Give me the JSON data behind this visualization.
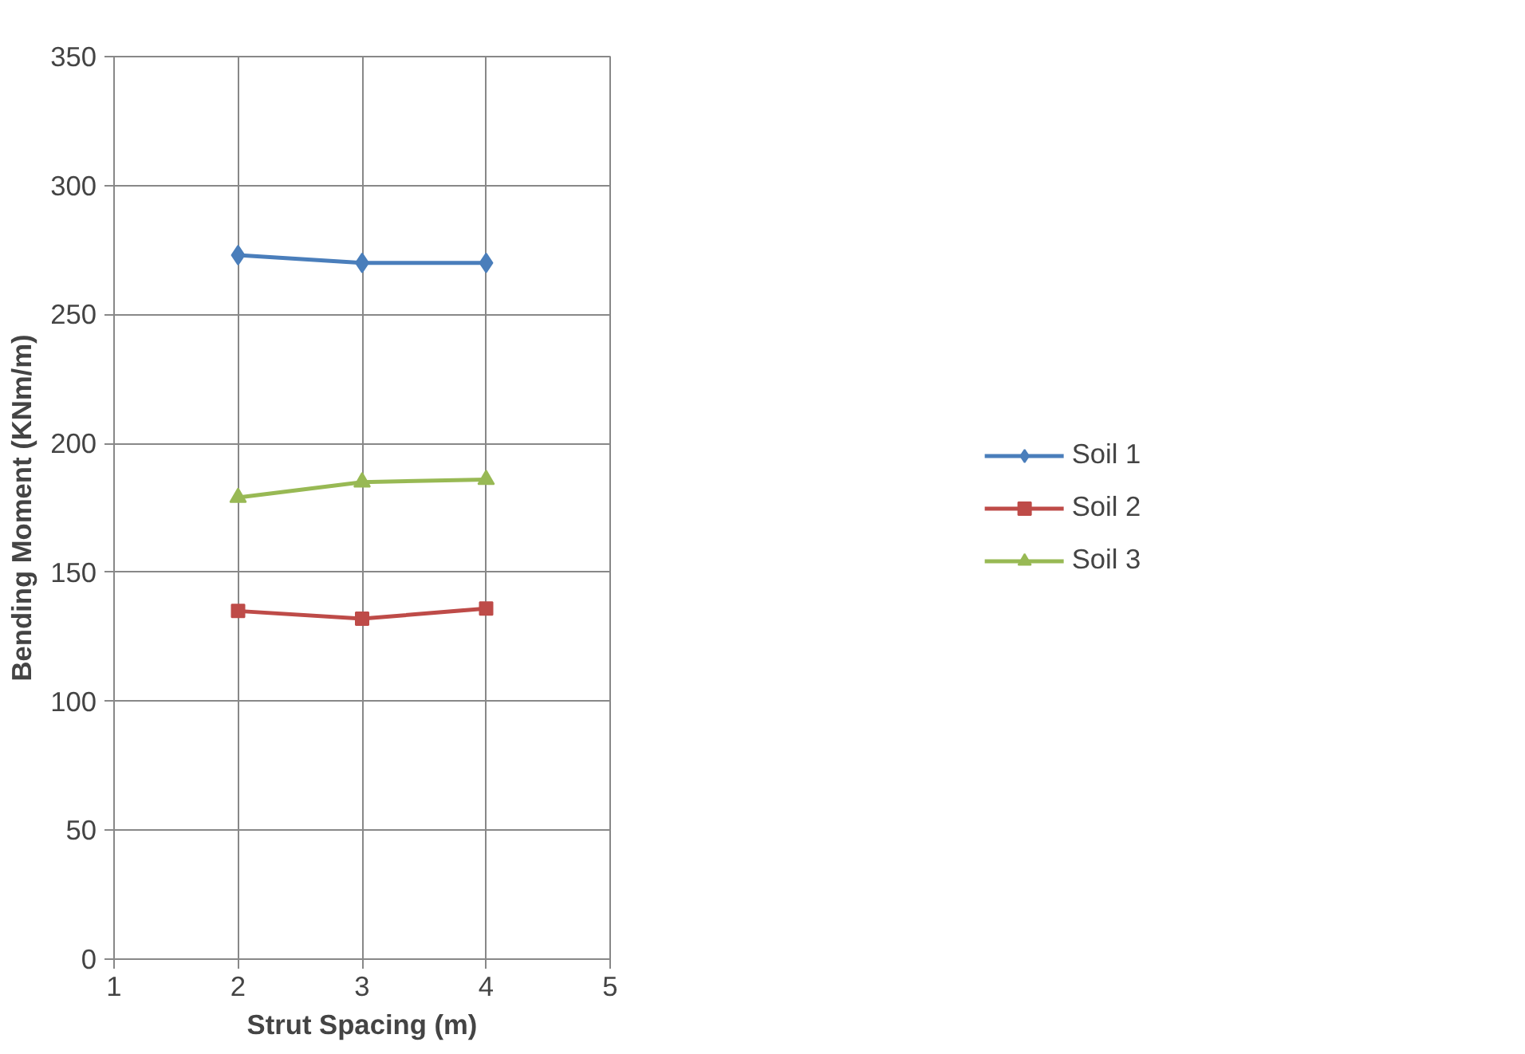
{
  "chart_data": {
    "type": "line",
    "xlabel": "Strut Spacing (m)",
    "ylabel": "Bending Moment (KNm/m)",
    "x": [
      2,
      3,
      4
    ],
    "series": [
      {
        "name": "Soil 1",
        "color": "#4a7ebb",
        "marker": "diamond",
        "values": [
          273,
          270,
          270
        ]
      },
      {
        "name": "Soil 2",
        "color": "#be4b48",
        "marker": "square",
        "values": [
          135,
          132,
          136
        ]
      },
      {
        "name": "Soil 3",
        "color": "#98b954",
        "marker": "triangle",
        "values": [
          179,
          185,
          186
        ]
      }
    ],
    "xlim": [
      1,
      5
    ],
    "xticks": [
      1,
      2,
      3,
      4,
      5
    ],
    "ylim": [
      0,
      350
    ],
    "yticks": [
      0,
      50,
      100,
      150,
      200,
      250,
      300,
      350
    ],
    "grid": true,
    "legend": "right",
    "line_style": "solid"
  }
}
